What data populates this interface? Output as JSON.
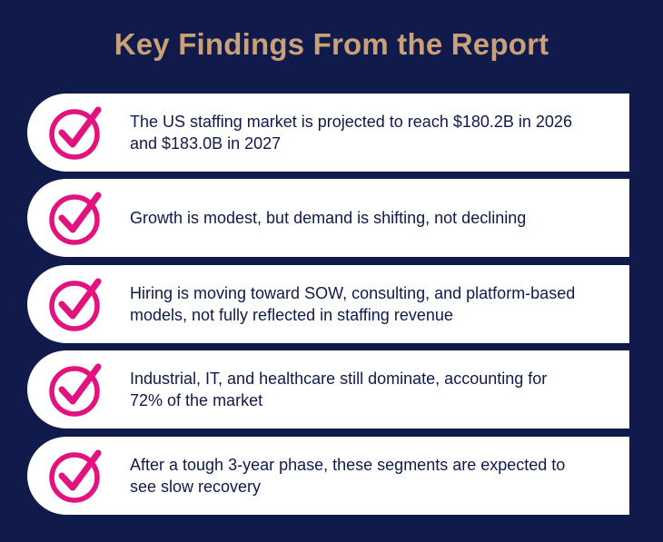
{
  "header": {
    "title": "Key Findings From the Report"
  },
  "findings": [
    "The US staffing market is projected to reach $180.2B in 2026 and $183.0B in 2027",
    "Growth is modest, but demand is shifting, not declining",
    "Hiring is moving toward SOW, consulting, and platform-based models, not fully reflected in staffing revenue",
    "Industrial, IT, and healthcare still dominate, accounting for 72% of the market",
    "After a tough 3-year phase, these segments are expected to see slow recovery"
  ]
}
